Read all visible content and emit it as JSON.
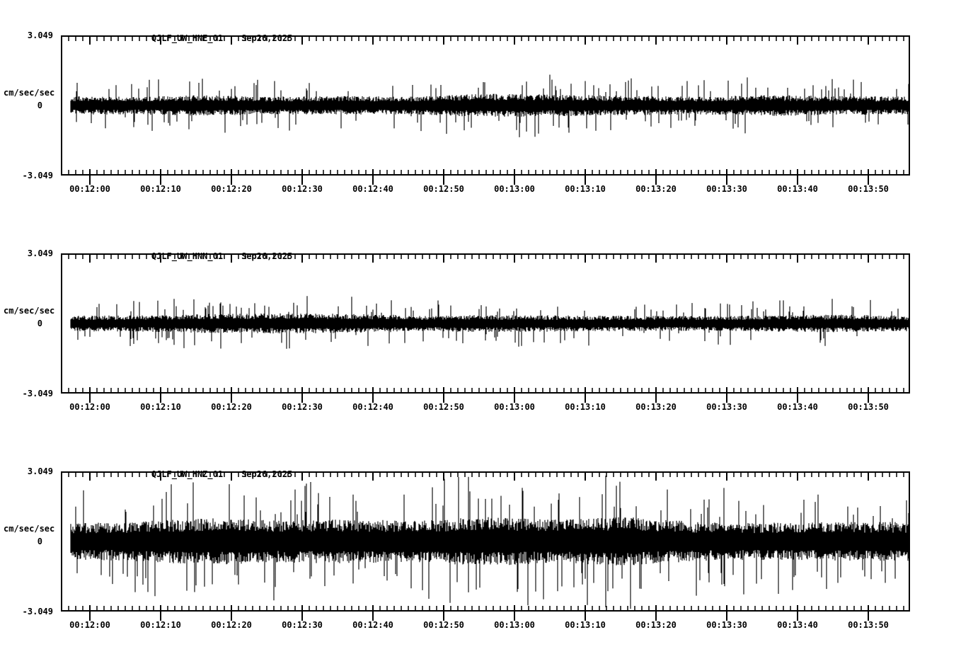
{
  "window": {
    "background": "#ffffff",
    "ink": "#000000"
  },
  "x_axis": {
    "start": "00:11:56",
    "end": "00:13:56",
    "major_tick_seconds": 10,
    "minor_tick_seconds": 1
  },
  "panels": [
    {
      "station": "QJLF_UW_HNE_01",
      "date": "Sep26,2025",
      "units": "cm/sec/sec",
      "y_max": "3.049",
      "y_zero": "0",
      "y_min": "-3.049"
    },
    {
      "station": "QJLF_UW_HNN_01",
      "date": "Sep26,2025",
      "units": "cm/sec/sec",
      "y_max": "3.049",
      "y_zero": "0",
      "y_min": "-3.049"
    },
    {
      "station": "QJLF_UW_HNZ_01",
      "date": "Sep26,2025",
      "units": "cm/sec/sec",
      "y_max": "3.049",
      "y_zero": "0",
      "y_min": "-3.049"
    }
  ],
  "chart_data": [
    {
      "type": "line",
      "subtype": "seismogram",
      "title": "QJLF_UW_HNE_01  Sep26,2025",
      "ylabel": "cm/sec/sec",
      "ylim": [
        -3.049,
        3.049
      ],
      "yticks": [
        -3.049,
        0,
        3.049
      ],
      "x_tick_labels": [
        "00:12:00",
        "00:12:10",
        "00:12:20",
        "00:12:30",
        "00:12:40",
        "00:12:50",
        "00:13:00",
        "00:13:10",
        "00:13:20",
        "00:13:30",
        "00:13:40",
        "00:13:50"
      ],
      "x_range": [
        "00:11:56",
        "00:13:56"
      ],
      "envelope_window_seconds": 10,
      "envelope_peak": [
        1.15,
        1.1,
        1.25,
        1.1,
        1.15,
        1.1,
        1.45,
        1.35,
        1.2,
        1.1,
        1.3,
        1.15,
        1.1
      ],
      "core_amplitude": 0.45,
      "peak_amplitude": 1.45,
      "seed": 101
    },
    {
      "type": "line",
      "subtype": "seismogram",
      "title": "QJLF_UW_HNN_01  Sep26,2025",
      "ylabel": "cm/sec/sec",
      "ylim": [
        -3.049,
        3.049
      ],
      "yticks": [
        -3.049,
        0,
        3.049
      ],
      "x_tick_labels": [
        "00:12:00",
        "00:12:10",
        "00:12:20",
        "00:12:30",
        "00:12:40",
        "00:12:50",
        "00:13:00",
        "00:13:10",
        "00:13:20",
        "00:13:30",
        "00:13:40",
        "00:13:50"
      ],
      "x_range": [
        "00:11:56",
        "00:13:56"
      ],
      "envelope_window_seconds": 10,
      "envelope_peak": [
        0.95,
        1.0,
        1.15,
        1.25,
        1.2,
        1.0,
        1.05,
        1.0,
        0.95,
        0.9,
        1.0,
        1.1,
        0.95
      ],
      "core_amplitude": 0.35,
      "peak_amplitude": 1.25,
      "seed": 202
    },
    {
      "type": "line",
      "subtype": "seismogram",
      "title": "QJLF_UW_HNZ_01  Sep26,2025",
      "ylabel": "cm/sec/sec",
      "ylim": [
        -3.049,
        3.049
      ],
      "yticks": [
        -3.049,
        0,
        3.049
      ],
      "x_tick_labels": [
        "00:12:00",
        "00:12:10",
        "00:12:20",
        "00:12:30",
        "00:12:40",
        "00:12:50",
        "00:13:00",
        "00:13:10",
        "00:13:20",
        "00:13:30",
        "00:13:40",
        "00:13:50"
      ],
      "x_range": [
        "00:11:56",
        "00:13:56"
      ],
      "envelope_window_seconds": 10,
      "envelope_peak": [
        2.2,
        2.4,
        2.9,
        2.6,
        2.7,
        2.6,
        3.0,
        2.7,
        3.0,
        2.4,
        2.3,
        2.4,
        2.4
      ],
      "core_amplitude": 1.0,
      "peak_amplitude": 3.0,
      "seed": 303
    }
  ]
}
